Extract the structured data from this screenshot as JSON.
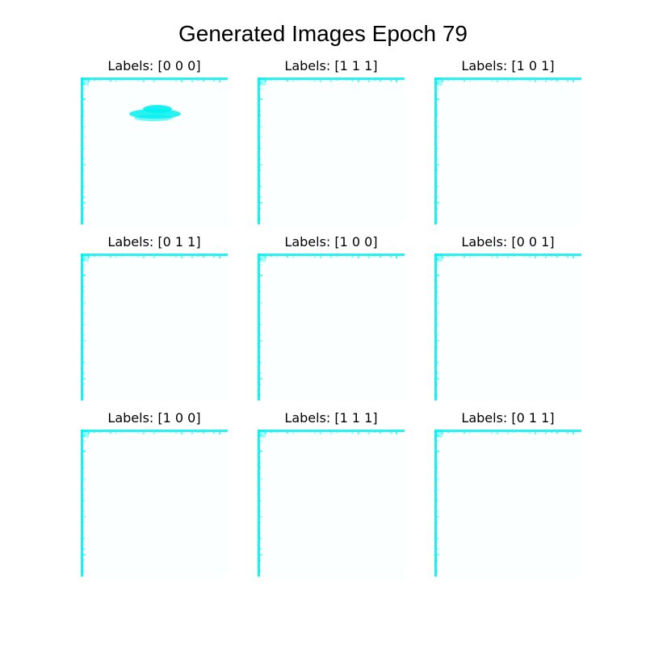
{
  "figure": {
    "title": "Generated Images Epoch 79",
    "accent_color": "#00f0f0"
  },
  "panels": [
    {
      "label": "Labels: [0 0 0]",
      "blob": true
    },
    {
      "label": "Labels: [1 1 1]",
      "blob": false
    },
    {
      "label": "Labels: [1 0 1]",
      "blob": false
    },
    {
      "label": "Labels: [0 1 1]",
      "blob": false
    },
    {
      "label": "Labels: [1 0 0]",
      "blob": false
    },
    {
      "label": "Labels: [0 0 1]",
      "blob": false
    },
    {
      "label": "Labels: [1 0 0]",
      "blob": false
    },
    {
      "label": "Labels: [1 1 1]",
      "blob": false
    },
    {
      "label": "Labels: [0 1 1]",
      "blob": false
    }
  ]
}
